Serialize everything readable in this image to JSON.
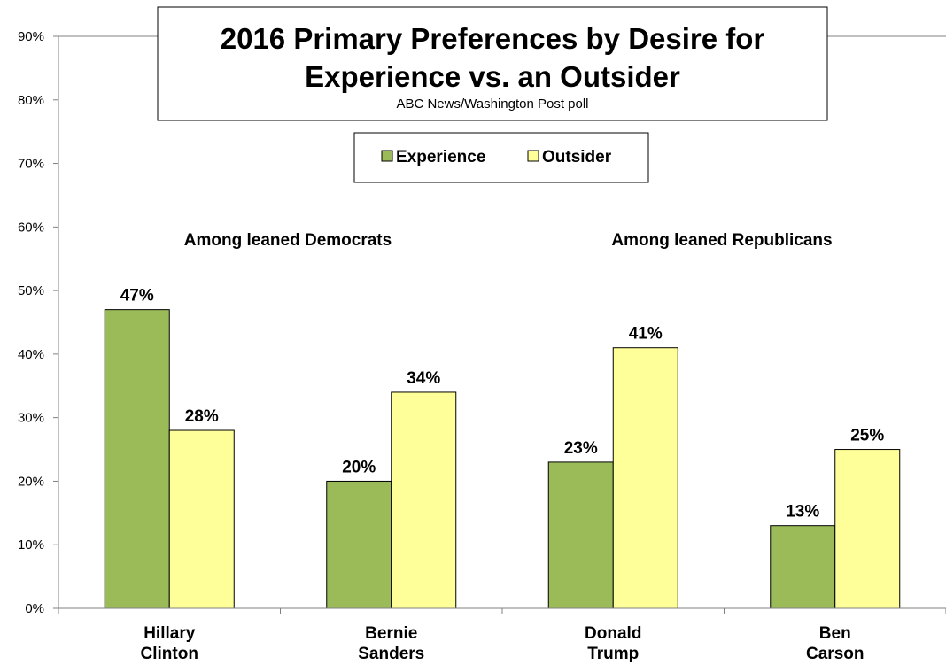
{
  "chart_data": {
    "type": "bar",
    "title": [
      "2016 Primary Preferences by Desire for",
      "Experience vs. an Outsider"
    ],
    "subtitle": "ABC News/Washington  Post poll",
    "categories": [
      [
        "Hillary",
        "Clinton"
      ],
      [
        "Bernie",
        "Sanders"
      ],
      [
        "Donald",
        "Trump"
      ],
      [
        "Ben",
        "Carson"
      ]
    ],
    "series": [
      {
        "name": "Experience",
        "values": [
          47,
          20,
          23,
          13
        ],
        "color": "#9bbb59"
      },
      {
        "name": "Outsider",
        "values": [
          28,
          34,
          41,
          25
        ],
        "color": "#ffff99"
      }
    ],
    "data_labels": [
      "47%",
      "28%",
      "20%",
      "34%",
      "23%",
      "41%",
      "13%",
      "25%"
    ],
    "group_labels": [
      "Among leaned Democrats",
      "Among leaned Republicans"
    ],
    "ylim": [
      0,
      90
    ],
    "yticks": [
      "0%",
      "10%",
      "20%",
      "30%",
      "40%",
      "50%",
      "60%",
      "70%",
      "80%",
      "90%"
    ],
    "xlabel": "",
    "ylabel": "",
    "grid": false,
    "legend_position": "top-center"
  }
}
